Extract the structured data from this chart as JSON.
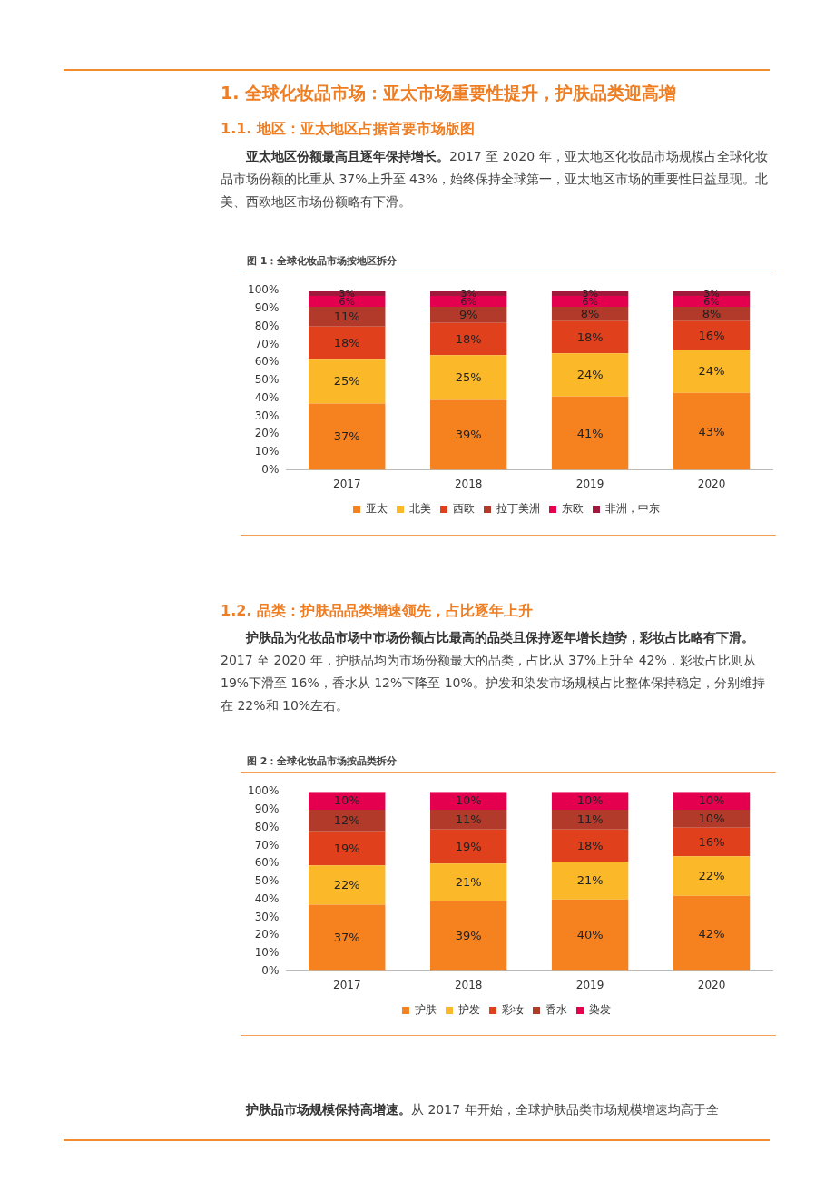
{
  "chart_data": [
    {
      "type": "bar",
      "stacked": true,
      "title": "图 1：全球化妆品市场按地区拆分",
      "annotations": [
        "1. 全球化妆品市场：亚太市场重要性提升，护肤品类迎高增",
        "1.1. 地区：亚太地区占据首要市场版图",
        "亚太地区份额最高且逐年保持增长。",
        "2017 至 2020 年，亚太地区化妆品市场规模占全球化妆品市场份额的比重从 37%上升至 43%，始终保持全球第一，亚太地区市场的重要性日益显现。北美、西欧地区市场份额略有下滑。"
      ],
      "categories": [
        "2017",
        "2018",
        "2019",
        "2020"
      ],
      "ylim": [
        0,
        100
      ],
      "yticks": [
        {
          "value": 0,
          "label": "0%"
        },
        {
          "value": 10,
          "label": "10%"
        },
        {
          "value": 20,
          "label": "20%"
        },
        {
          "value": 30,
          "label": "30%"
        },
        {
          "value": 40,
          "label": "40%"
        },
        {
          "value": 50,
          "label": "50%"
        },
        {
          "value": 60,
          "label": "60%"
        },
        {
          "value": 70,
          "label": "70%"
        },
        {
          "value": 80,
          "label": "80%"
        },
        {
          "value": 90,
          "label": "90%"
        },
        {
          "value": 100,
          "label": "100%"
        }
      ],
      "legend": "bottom",
      "series": [
        {
          "name": "亚太",
          "color": "#f5821f",
          "values": [
            37,
            39,
            41,
            43
          ],
          "value_labels": [
            "37%",
            "39%",
            "41%",
            "43%"
          ]
        },
        {
          "name": "北美",
          "color": "#fbb829",
          "values": [
            25,
            25,
            24,
            24
          ],
          "value_labels": [
            "25%",
            "25%",
            "24%",
            "24%"
          ]
        },
        {
          "name": "西欧",
          "color": "#e0401c",
          "values": [
            18,
            18,
            18,
            16
          ],
          "value_labels": [
            "18%",
            "18%",
            "18%",
            "16%"
          ]
        },
        {
          "name": "拉丁美洲",
          "color": "#b23a2a",
          "values": [
            11,
            9,
            8,
            8
          ],
          "value_labels": [
            "11%",
            "9%",
            "8%",
            "8%"
          ]
        },
        {
          "name": "东欧",
          "color": "#e5004f",
          "values": [
            6,
            6,
            6,
            6
          ],
          "value_labels": [
            "6%",
            "6%",
            "6%",
            "6%"
          ]
        },
        {
          "name": "非洲，中东",
          "color": "#a0183c",
          "values": [
            3,
            3,
            3,
            3
          ],
          "value_labels": [
            "3%",
            "3%",
            "3%",
            "3%"
          ]
        }
      ]
    },
    {
      "type": "bar",
      "stacked": true,
      "title": "图 2：全球化妆品市场按品类拆分",
      "annotations": [
        "1.2. 品类：护肤品品类增速领先，占比逐年上升",
        "护肤品为化妆品市场中市场份额占比最高的品类且保持逐年增长趋势，彩妆占比略有下滑。",
        "2017 至 2020 年，护肤品均为市场份额最大的品类，占比从 37%上升至 42%，彩妆占比则从 19%下滑至 16%，香水从 12%下降至 10%。护发和染发市场规模占比整体保持稳定，分别维持在 22%和 10%左右。",
        "护肤品市场规模保持高增速。",
        "从 2017 年开始，全球护肤品类市场规模增速均高于全"
      ],
      "categories": [
        "2017",
        "2018",
        "2019",
        "2020"
      ],
      "ylim": [
        0,
        100
      ],
      "yticks": [
        {
          "value": 0,
          "label": "0%"
        },
        {
          "value": 10,
          "label": "10%"
        },
        {
          "value": 20,
          "label": "20%"
        },
        {
          "value": 30,
          "label": "30%"
        },
        {
          "value": 40,
          "label": "40%"
        },
        {
          "value": 50,
          "label": "50%"
        },
        {
          "value": 60,
          "label": "60%"
        },
        {
          "value": 70,
          "label": "70%"
        },
        {
          "value": 80,
          "label": "80%"
        },
        {
          "value": 90,
          "label": "90%"
        },
        {
          "value": 100,
          "label": "100%"
        }
      ],
      "legend": "bottom",
      "series": [
        {
          "name": "护肤",
          "color": "#f5821f",
          "values": [
            37,
            39,
            40,
            42
          ],
          "value_labels": [
            "37%",
            "39%",
            "40%",
            "42%"
          ]
        },
        {
          "name": "护发",
          "color": "#fbb829",
          "values": [
            22,
            21,
            21,
            22
          ],
          "value_labels": [
            "22%",
            "21%",
            "21%",
            "22%"
          ]
        },
        {
          "name": "彩妆",
          "color": "#e0401c",
          "values": [
            19,
            19,
            18,
            16
          ],
          "value_labels": [
            "19%",
            "19%",
            "18%",
            "16%"
          ]
        },
        {
          "name": "香水",
          "color": "#b23a2a",
          "values": [
            12,
            11,
            11,
            10
          ],
          "value_labels": [
            "12%",
            "11%",
            "11%",
            "10%"
          ]
        },
        {
          "name": "染发",
          "color": "#e5004f",
          "values": [
            10,
            10,
            10,
            10
          ],
          "value_labels": [
            "10%",
            "10%",
            "10%",
            "10%"
          ]
        }
      ]
    }
  ]
}
